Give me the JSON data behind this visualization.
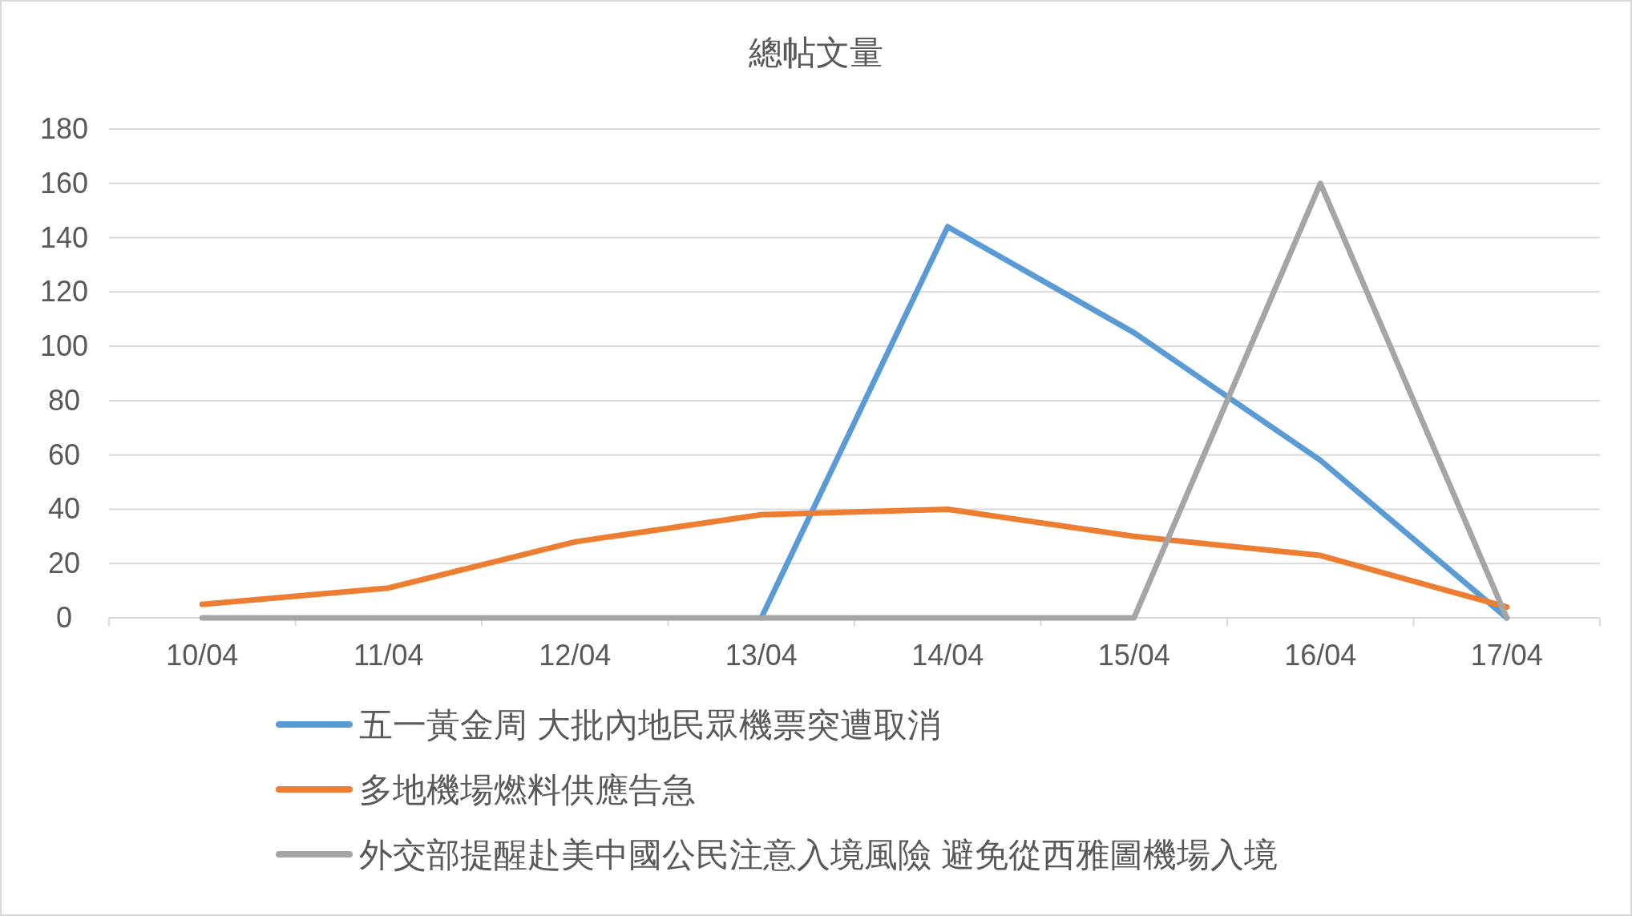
{
  "chart_data": {
    "type": "line",
    "title": "總帖文量",
    "categories": [
      "10/04",
      "11/04",
      "12/04",
      "13/04",
      "14/04",
      "15/04",
      "16/04",
      "17/04"
    ],
    "series": [
      {
        "name": "五一黃金周 大批內地民眾機票突遭取消",
        "color": "#5b9bd5",
        "values": [
          null,
          null,
          null,
          0,
          144,
          105,
          58,
          0
        ]
      },
      {
        "name": "多地機場燃料供應告急",
        "color": "#ed7d31",
        "values": [
          5,
          11,
          28,
          38,
          40,
          30,
          23,
          4
        ]
      },
      {
        "name": "外交部提醒赴美中國公民注意入境風險 避免從西雅圖機場入境",
        "color": "#a5a5a5",
        "values": [
          0,
          0,
          0,
          0,
          0,
          0,
          160,
          0
        ]
      }
    ],
    "ylim": [
      0,
      180
    ],
    "yticks": [
      0,
      20,
      40,
      60,
      80,
      100,
      120,
      140,
      160,
      180
    ],
    "grid": "y",
    "legend": "bottom",
    "marker": "none",
    "line_style": "solid"
  }
}
